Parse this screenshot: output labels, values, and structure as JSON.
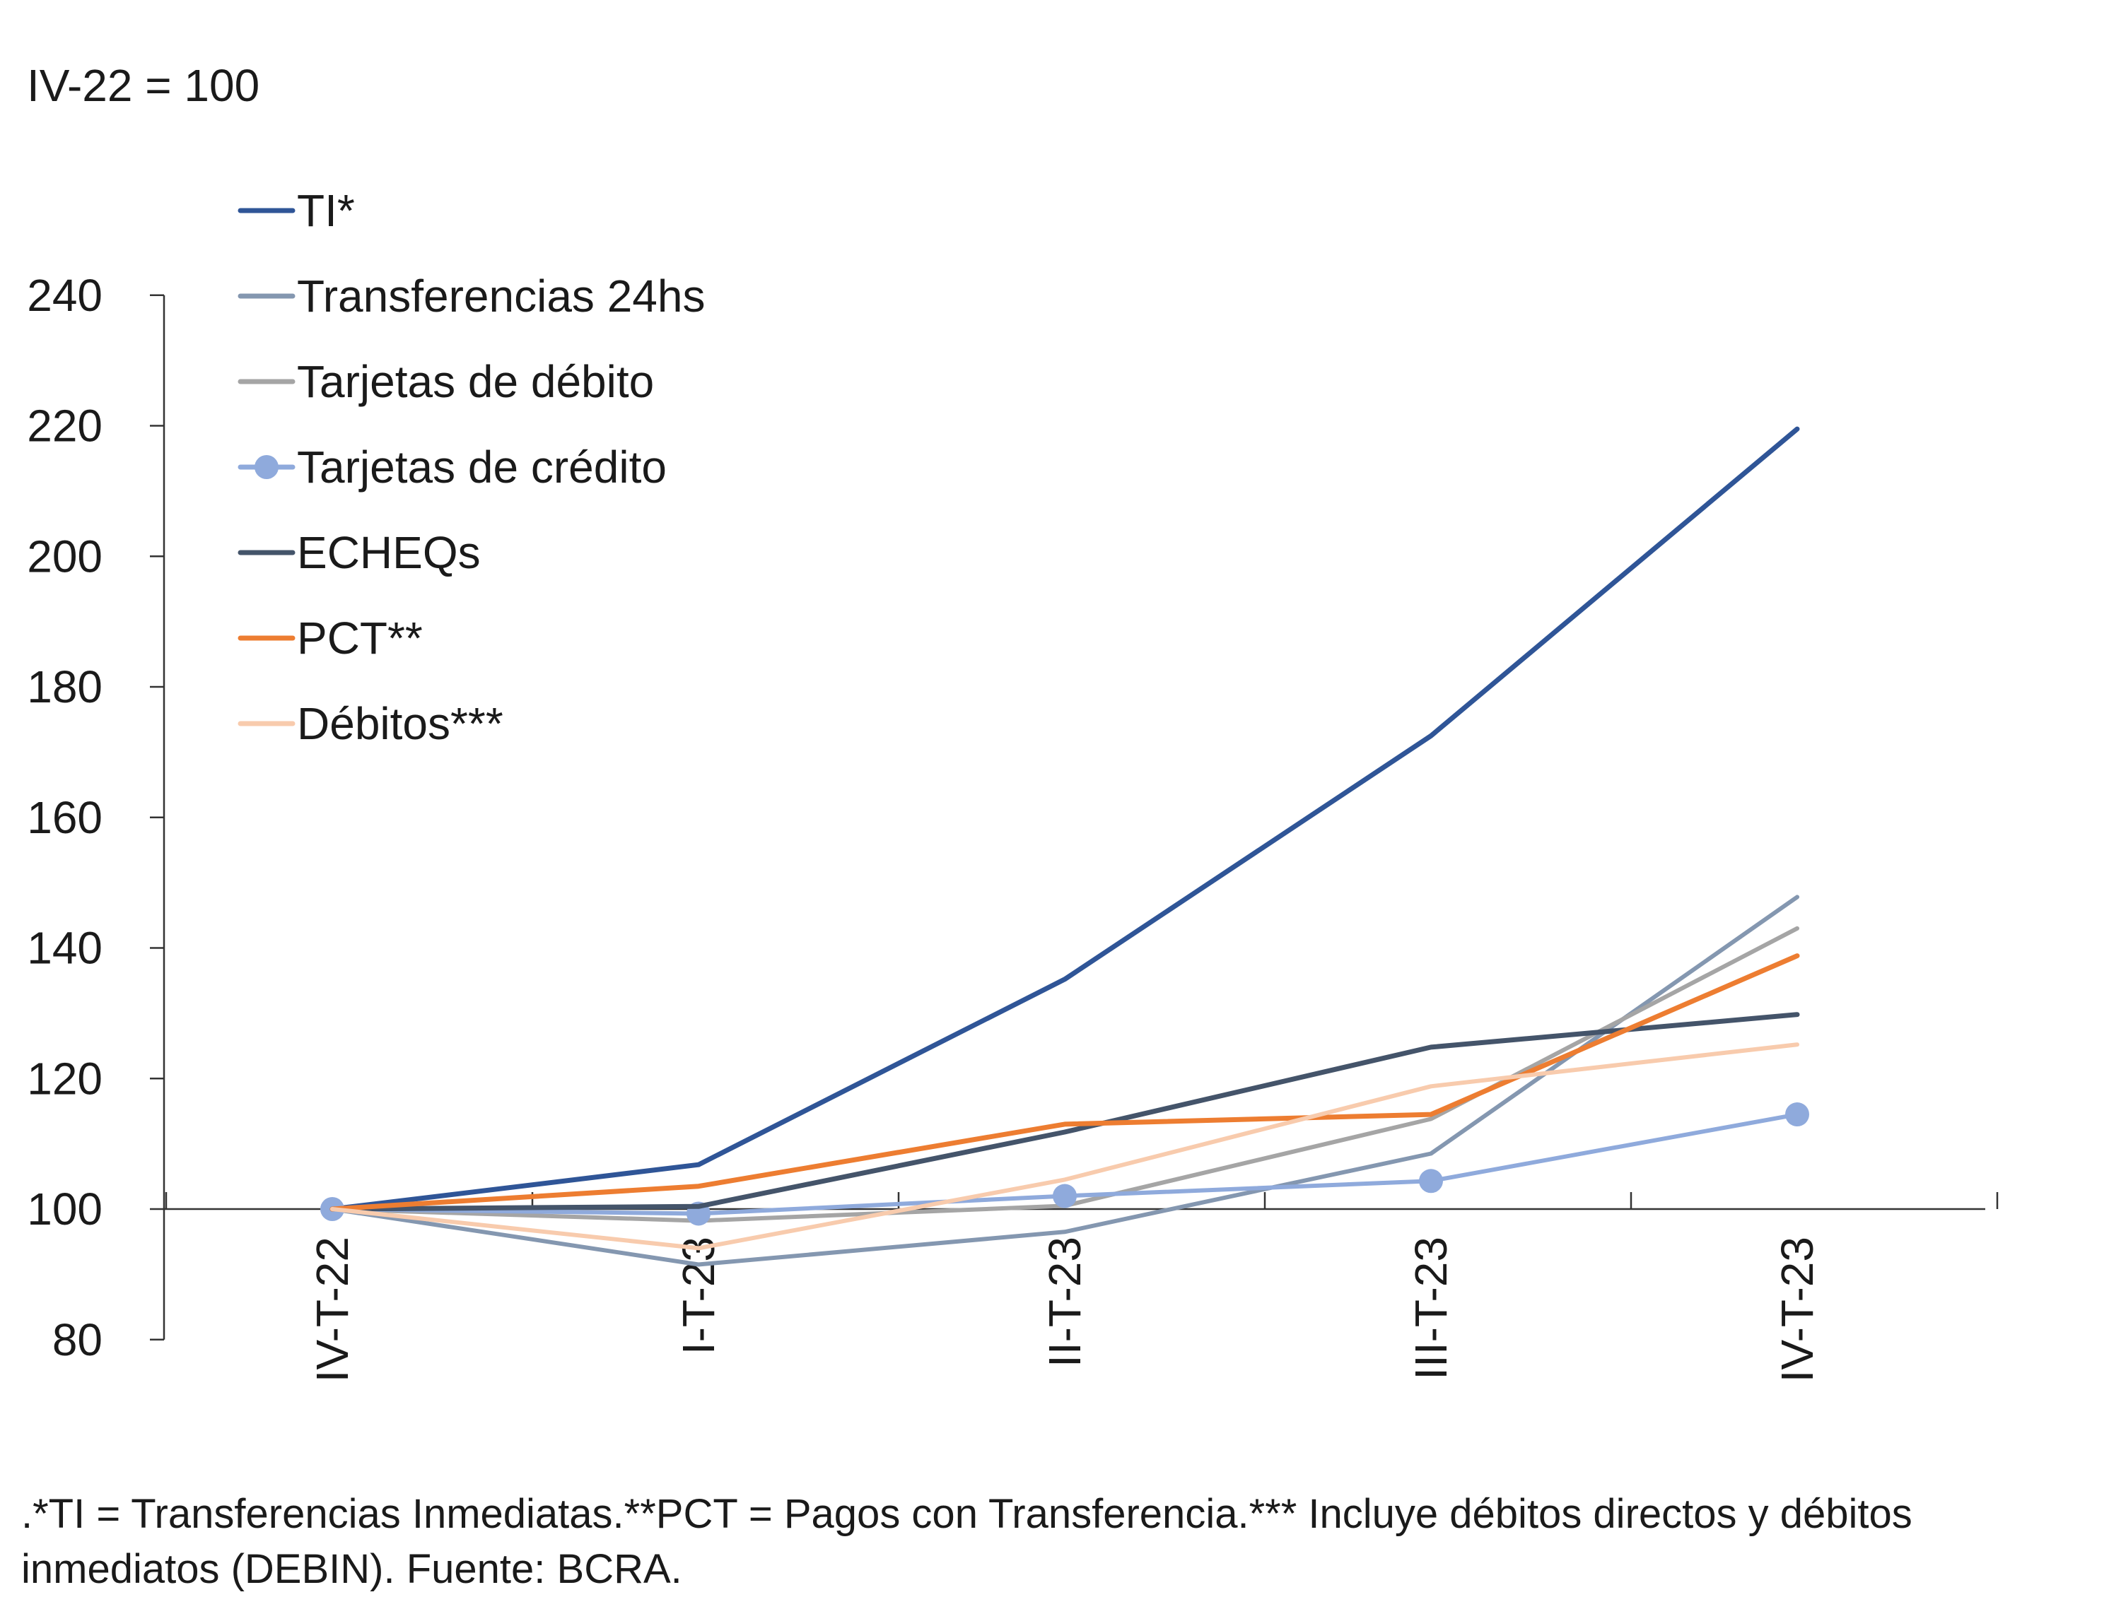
{
  "chart_data": {
    "type": "line",
    "unit_label": "IV-22 = 100",
    "categories": [
      "IV-T-22",
      "I-T-23",
      "II-T-23",
      "III-T-23",
      "IV-T-23"
    ],
    "ylim": [
      80,
      240
    ],
    "yticks": [
      80,
      100,
      120,
      140,
      160,
      180,
      200,
      220,
      240
    ],
    "grid": false,
    "legend_position": "top-left",
    "series": [
      {
        "name": "TI*",
        "color": "#2f5597",
        "marker": false,
        "values": [
          100,
          106.8,
          135.2,
          172.5,
          219.5
        ]
      },
      {
        "name": "Transferencias 24hs",
        "color": "#8497b0",
        "marker": false,
        "values": [
          100,
          91.5,
          96.5,
          108.5,
          147.8
        ]
      },
      {
        "name": "Tarjetas de débito",
        "color": "#a5a5a5",
        "marker": false,
        "values": [
          100,
          98.2,
          100.5,
          113.8,
          143.0
        ]
      },
      {
        "name": "Tarjetas de crédito",
        "color": "#8faadc",
        "marker": true,
        "values": [
          100,
          99.3,
          102.0,
          104.3,
          114.5
        ]
      },
      {
        "name": "ECHEQs",
        "color": "#44546a",
        "marker": false,
        "values": [
          100,
          100.4,
          111.8,
          124.8,
          129.8
        ]
      },
      {
        "name": "PCT**",
        "color": "#ed7d31",
        "marker": false,
        "values": [
          100,
          103.5,
          113.0,
          114.5,
          138.8
        ]
      },
      {
        "name": "Débitos***",
        "color": "#f8cbad",
        "marker": false,
        "values": [
          100,
          94.0,
          104.5,
          118.8,
          125.2
        ]
      }
    ]
  },
  "footnote": ".*TI = Transferencias Inmediatas.**PCT = Pagos con Transferencia.*** Incluye débitos directos y débitos inmediatos (DEBIN). Fuente: BCRA."
}
